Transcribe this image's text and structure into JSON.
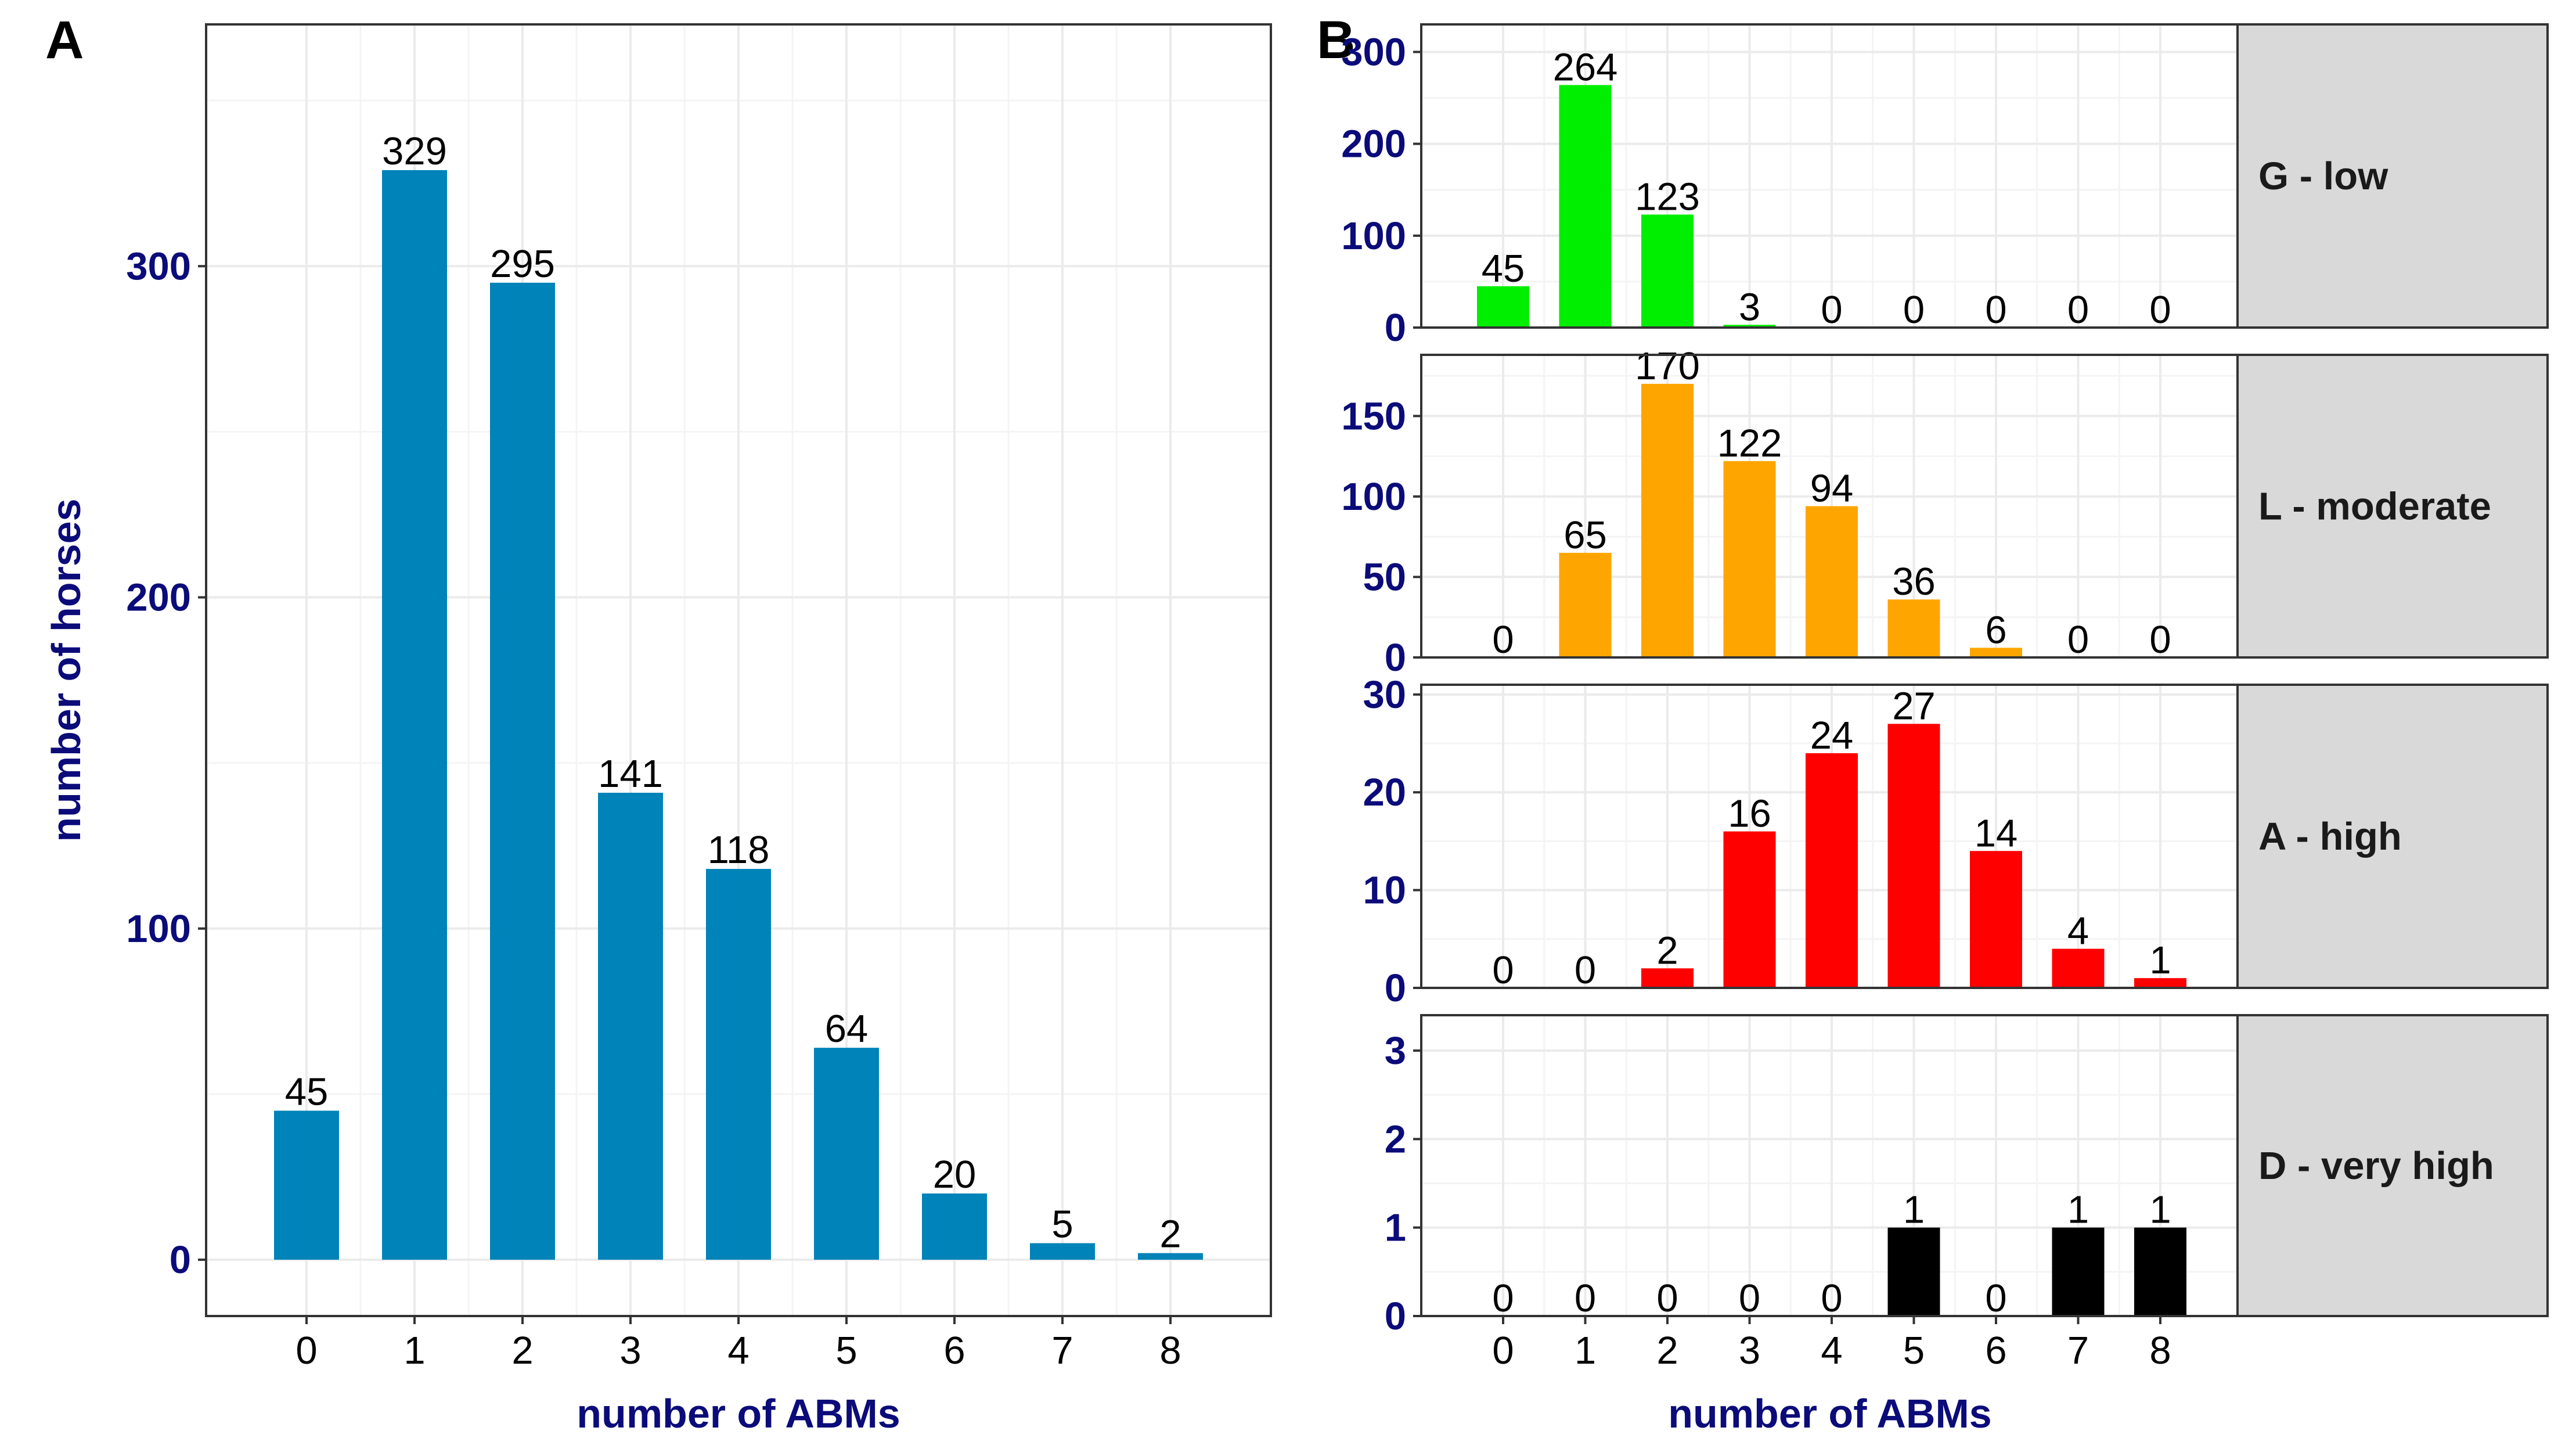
{
  "chart_data": [
    {
      "panel_label": "A",
      "type": "bar",
      "categories": [
        "0",
        "1",
        "2",
        "3",
        "4",
        "5",
        "6",
        "7",
        "8"
      ],
      "values": [
        45,
        329,
        295,
        141,
        118,
        64,
        20,
        5,
        2
      ],
      "bar_labels": [
        "45",
        "329",
        "295",
        "141",
        "118",
        "64",
        "20",
        "5",
        "2"
      ],
      "color": "#0083b8",
      "xlabel": "number of ABMs",
      "ylabel": "number of horses",
      "yticks": [
        0,
        100,
        200,
        300
      ],
      "ytick_labels": [
        "0",
        "100",
        "200",
        "300"
      ],
      "ylim": [
        -17,
        373
      ],
      "grid": true
    },
    {
      "panel_label": "B",
      "type": "bar",
      "facet": "rows",
      "categories": [
        "0",
        "1",
        "2",
        "3",
        "4",
        "5",
        "6",
        "7",
        "8"
      ],
      "xlabel": "number of ABMs",
      "grid": true,
      "facets": [
        {
          "strip": "G - low",
          "color": "#00ee00",
          "values": [
            45,
            264,
            123,
            3,
            0,
            0,
            0,
            0,
            0
          ],
          "bar_labels": [
            "45",
            "264",
            "123",
            "3",
            "0",
            "0",
            "0",
            "0",
            "0"
          ],
          "yticks": [
            0,
            100,
            200,
            300
          ],
          "ytick_labels": [
            "0",
            "100",
            "200",
            "300"
          ],
          "ylim": [
            0,
            330
          ]
        },
        {
          "strip": "L - moderate",
          "color": "#ffa500",
          "values": [
            0,
            65,
            170,
            122,
            94,
            36,
            6,
            0,
            0
          ],
          "bar_labels": [
            "0",
            "65",
            "170",
            "122",
            "94",
            "36",
            "6",
            "0",
            "0"
          ],
          "yticks": [
            0,
            50,
            100,
            150
          ],
          "ytick_labels": [
            "0",
            "50",
            "100",
            "150"
          ],
          "ylim": [
            0,
            188
          ]
        },
        {
          "strip": "A - high",
          "color": "#ff0000",
          "values": [
            0,
            0,
            2,
            16,
            24,
            27,
            14,
            4,
            1
          ],
          "bar_labels": [
            "0",
            "0",
            "2",
            "16",
            "24",
            "27",
            "14",
            "4",
            "1"
          ],
          "yticks": [
            0,
            10,
            20,
            30
          ],
          "ytick_labels": [
            "0",
            "10",
            "20",
            "30"
          ],
          "ylim": [
            0,
            31
          ]
        },
        {
          "strip": "D - very high",
          "color": "#000000",
          "values": [
            0,
            0,
            0,
            0,
            0,
            1,
            0,
            1,
            1
          ],
          "bar_labels": [
            "0",
            "0",
            "0",
            "0",
            "0",
            "1",
            "0",
            "1",
            "1"
          ],
          "yticks": [
            0,
            1,
            2,
            3
          ],
          "ytick_labels": [
            "0",
            "1",
            "2",
            "3"
          ],
          "ylim": [
            0,
            3.4
          ]
        }
      ]
    }
  ]
}
